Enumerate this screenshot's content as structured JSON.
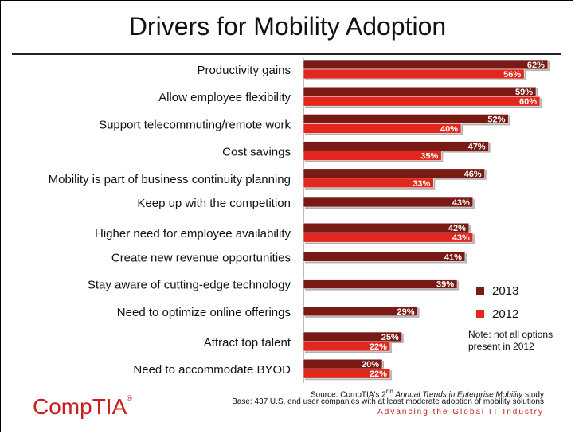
{
  "logo_text": "CompTIA",
  "logo_tm": "®",
  "chart_data": {
    "type": "bar",
    "orientation": "horizontal",
    "title": "Drivers for Mobility Adoption",
    "categories": [
      "Productivity gains",
      "Allow employee flexibility",
      "Support telecommuting/remote work",
      "Cost savings",
      "Mobility is part of business continuity planning",
      "Keep up with the competition",
      "Higher need for employee availability",
      "Create new revenue opportunities",
      "Stay aware of cutting-edge technology",
      "Need to optimize online offerings",
      "Attract top talent",
      "Need to accommodate BYOD"
    ],
    "series": [
      {
        "name": "2013",
        "color": "#7a1a14",
        "values": [
          62,
          59,
          52,
          47,
          46,
          43,
          42,
          41,
          39,
          29,
          25,
          20
        ]
      },
      {
        "name": "2012",
        "color": "#e0281e",
        "values": [
          56,
          60,
          40,
          35,
          33,
          null,
          43,
          null,
          null,
          null,
          22,
          22
        ]
      }
    ],
    "value_suffix": "%",
    "xlim": [
      0,
      65
    ],
    "legend": "right",
    "note": "Note: not all options present in 2012"
  },
  "source": {
    "prefix": "Source: CompTIA's 2",
    "sup": "nd",
    "italic": " Annual Trends in Enterprise Mobility",
    "suffix": " study"
  },
  "base": "Base: 437 U.S. end user companies with at least moderate adoption of mobility solutions",
  "tagline": "Advancing the Global IT Industry"
}
